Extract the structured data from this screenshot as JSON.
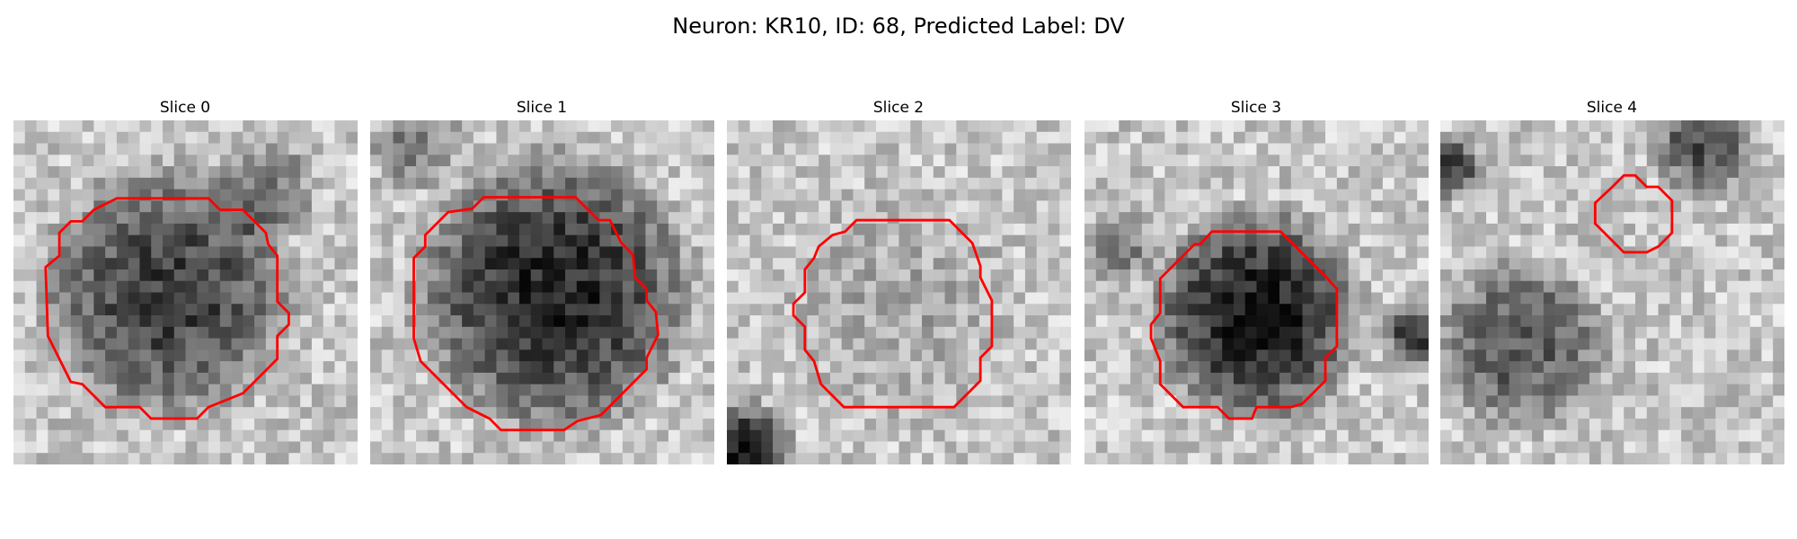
{
  "title": "Neuron: KR10, ID: 68, Predicted Label: DV",
  "panels": [
    {
      "title": "Slice 0"
    },
    {
      "title": "Slice 1"
    },
    {
      "title": "Slice 2"
    },
    {
      "title": "Slice 3"
    },
    {
      "title": "Slice 4"
    }
  ]
}
